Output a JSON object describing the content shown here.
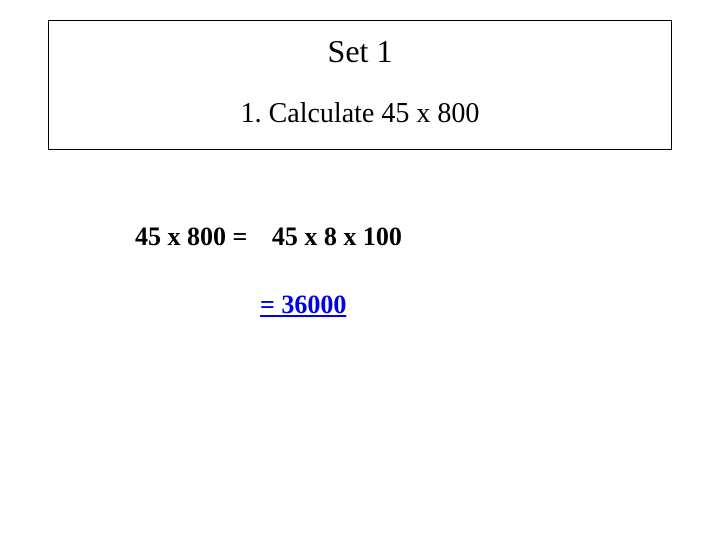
{
  "header": {
    "set_title": "Set 1",
    "question": "1. Calculate 45 x 800"
  },
  "work": {
    "lhs": "45 x 800 =",
    "rhs": "45 x 8 x 100",
    "answer": "= 36000"
  },
  "colors": {
    "background": "#ffffff",
    "text": "#000000",
    "link": "#0000ee",
    "border": "#000000"
  }
}
